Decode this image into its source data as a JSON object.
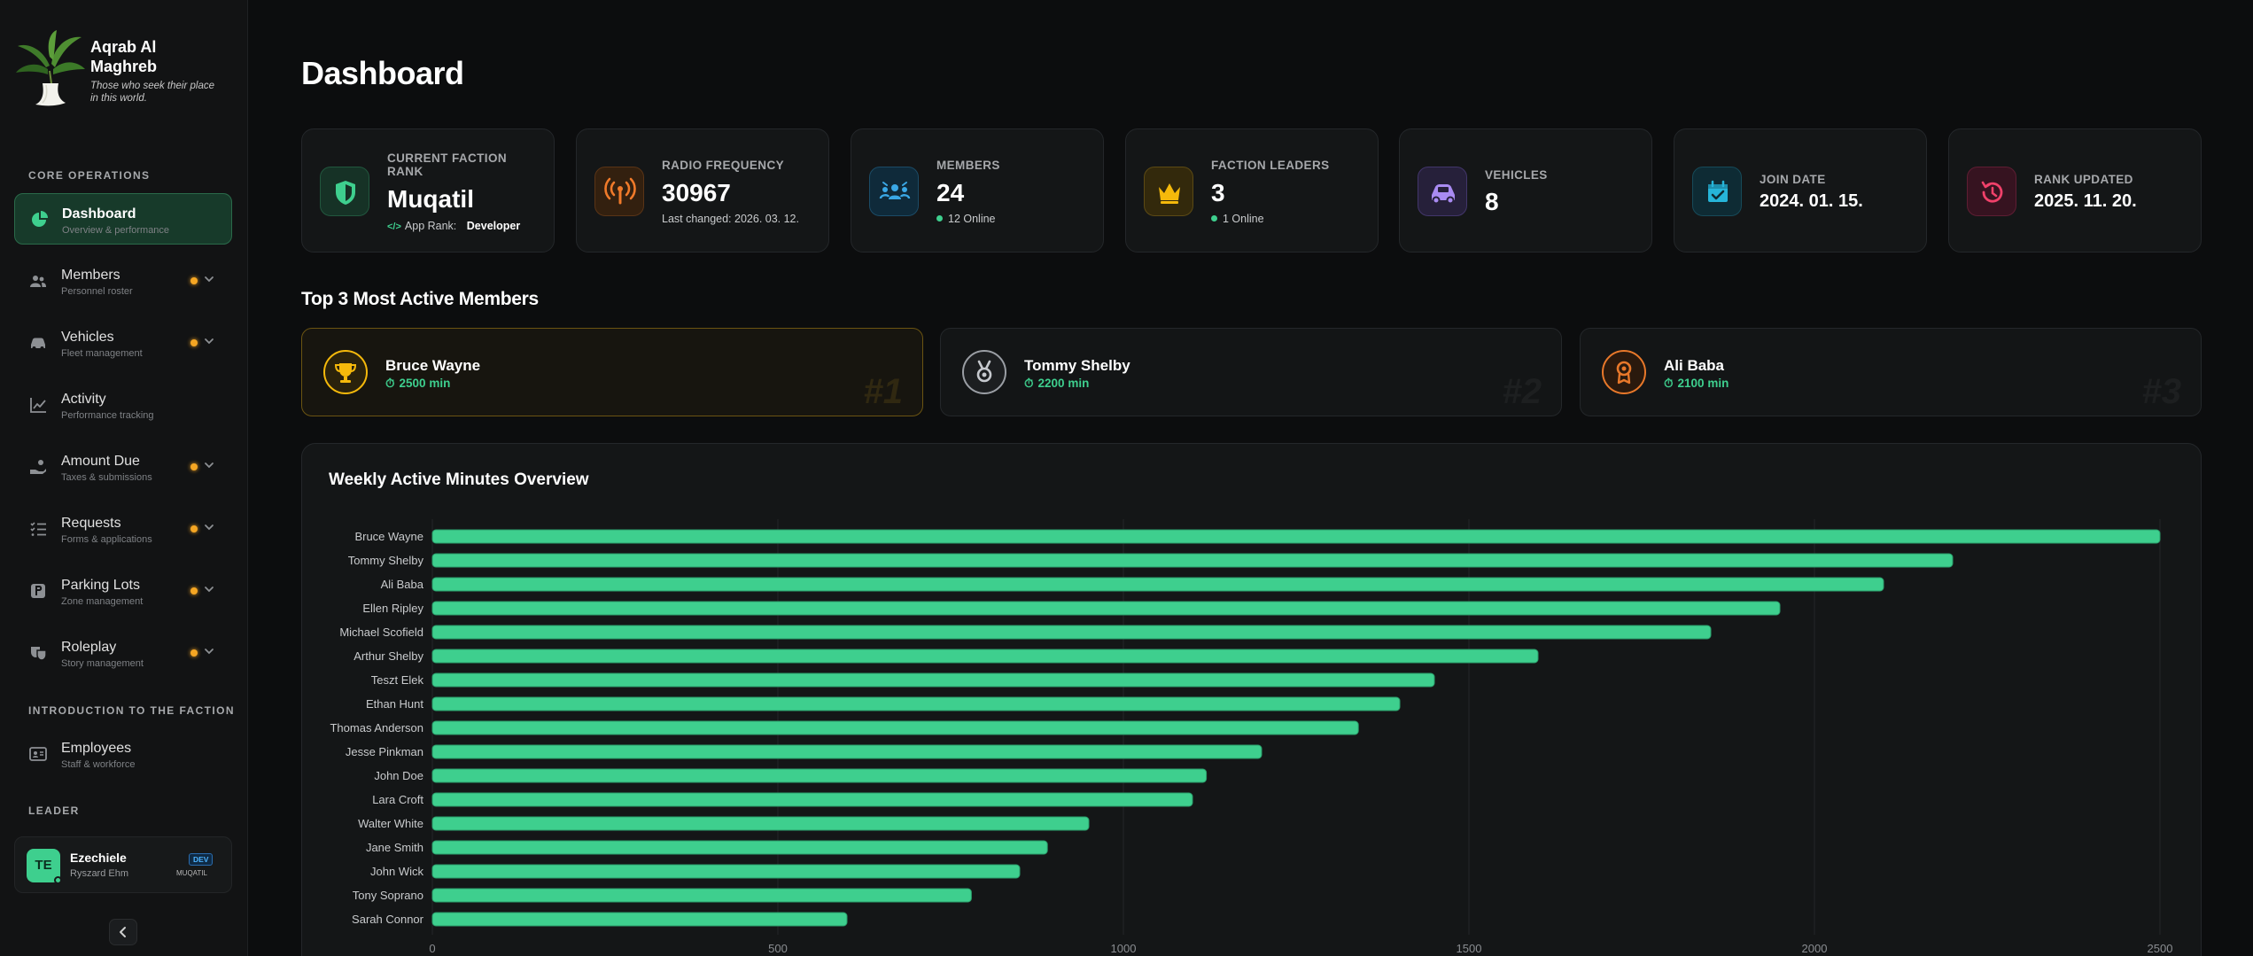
{
  "brand": {
    "title": "Aqrab Al Maghreb",
    "subtitle": "Those who seek their place in this world."
  },
  "sidebar": {
    "sections": {
      "core": "CORE OPERATIONS",
      "intro": "INTRODUCTION TO THE FACTION",
      "leader": "LEADER"
    },
    "items": [
      {
        "label": "Dashboard",
        "sub": "Overview & performance",
        "icon": "pie-chart-icon",
        "active": true,
        "dot": false,
        "chevron": false
      },
      {
        "label": "Members",
        "sub": "Personnel roster",
        "icon": "users-icon",
        "active": false,
        "dot": true,
        "chevron": true
      },
      {
        "label": "Vehicles",
        "sub": "Fleet management",
        "icon": "car-icon",
        "active": false,
        "dot": true,
        "chevron": true
      },
      {
        "label": "Activity",
        "sub": "Performance tracking",
        "icon": "line-chart-icon",
        "active": false,
        "dot": false,
        "chevron": false
      },
      {
        "label": "Amount Due",
        "sub": "Taxes & submissions",
        "icon": "hand-coin-icon",
        "active": false,
        "dot": true,
        "chevron": true
      },
      {
        "label": "Requests",
        "sub": "Forms & applications",
        "icon": "list-check-icon",
        "active": false,
        "dot": true,
        "chevron": true
      },
      {
        "label": "Parking Lots",
        "sub": "Zone management",
        "icon": "parking-icon",
        "active": false,
        "dot": true,
        "chevron": true
      },
      {
        "label": "Roleplay",
        "sub": "Story management",
        "icon": "theater-mask-icon",
        "active": false,
        "dot": true,
        "chevron": true
      }
    ],
    "intro_items": [
      {
        "label": "Employees",
        "sub": "Staff & workforce",
        "icon": "id-card-icon"
      }
    ],
    "user": {
      "initials": "TE",
      "name": "Ezechiele",
      "sub": "Ryszard Ehm",
      "badge": "DEV",
      "rank": "MUQATIL"
    }
  },
  "page": {
    "title": "Dashboard"
  },
  "stats": [
    {
      "label": "CURRENT FACTION RANK",
      "value": "Muqatil",
      "sub_prefix": "App Rank:",
      "sub_value": "Developer",
      "icon": "shield-icon",
      "color": "#3ecf8e"
    },
    {
      "label": "RADIO FREQUENCY",
      "value": "30967",
      "sub": "Last changed: 2026. 03. 12.",
      "icon": "antenna-icon",
      "color": "#f07a2a"
    },
    {
      "label": "MEMBERS",
      "value": "24",
      "sub": "12 Online",
      "icon": "group-icon",
      "color": "#3aa8e6"
    },
    {
      "label": "FACTION LEADERS",
      "value": "3",
      "sub": "1 Online",
      "icon": "crown-icon",
      "color": "#f5b90b"
    },
    {
      "label": "VEHICLES",
      "value": "8",
      "icon": "car-icon",
      "color": "#a98bf2"
    },
    {
      "label": "JOIN DATE",
      "value": "2024. 01. 15.",
      "icon": "calendar-check-icon",
      "color": "#26b5d9"
    },
    {
      "label": "RANK UPDATED",
      "value": "2025. 11. 20.",
      "icon": "history-icon",
      "color": "#f0416a"
    }
  ],
  "top": {
    "title": "Top 3 Most Active Members",
    "members": [
      {
        "name": "Bruce Wayne",
        "minutes": "2500 min",
        "rank": "#1",
        "icon": "trophy-icon",
        "color": "#f5b90b"
      },
      {
        "name": "Tommy Shelby",
        "minutes": "2200 min",
        "rank": "#2",
        "icon": "medal-icon",
        "color": "#b8bcc2"
      },
      {
        "name": "Ali Baba",
        "minutes": "2100 min",
        "rank": "#3",
        "icon": "award-icon",
        "color": "#e8782a"
      }
    ]
  },
  "chart": {
    "title": "Weekly Active Minutes Overview"
  },
  "chart_data": {
    "type": "bar",
    "orientation": "horizontal",
    "categories": [
      "Bruce Wayne",
      "Tommy Shelby",
      "Ali Baba",
      "Ellen Ripley",
      "Michael Scofield",
      "Arthur Shelby",
      "Teszt Elek",
      "Ethan Hunt",
      "Thomas Anderson",
      "Jesse Pinkman",
      "John Doe",
      "Lara Croft",
      "Walter White",
      "Jane Smith",
      "John Wick",
      "Tony Soprano",
      "Sarah Connor"
    ],
    "values": [
      2500,
      2200,
      2100,
      1950,
      1850,
      1600,
      1450,
      1400,
      1340,
      1200,
      1120,
      1100,
      950,
      890,
      850,
      780,
      600
    ],
    "title": "Weekly Active Minutes Overview",
    "xlim": [
      0,
      2500
    ],
    "xticks": [
      0,
      500,
      1000,
      1500,
      2000,
      2500
    ],
    "grid": true,
    "color": "#3ecf8e"
  }
}
